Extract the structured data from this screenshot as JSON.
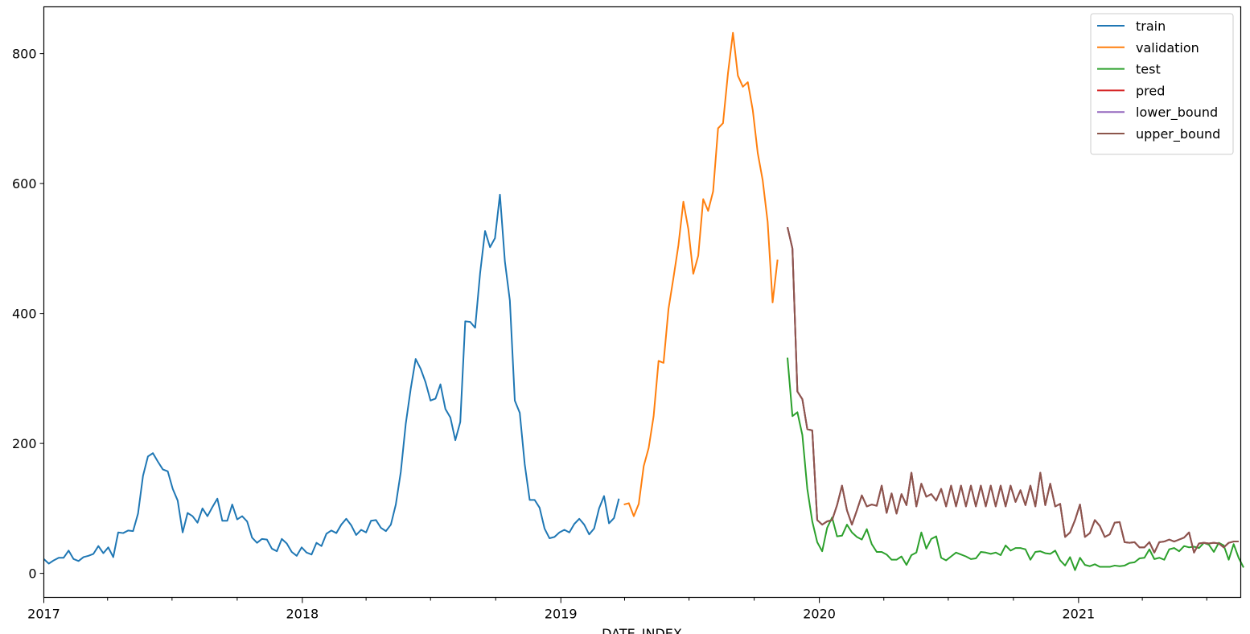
{
  "chart_data": {
    "type": "line",
    "xlabel": "DATE_INDEX",
    "x_ticks": [
      "2017",
      "2018",
      "2019",
      "2020",
      "2021"
    ],
    "y_ticks": [
      0,
      200,
      400,
      600,
      800
    ],
    "xlim": [
      "2017-01-01",
      "2021-08-18"
    ],
    "ylim": [
      -37,
      872
    ],
    "legend_position": "top-right",
    "legend": [
      "train",
      "validation",
      "test",
      "pred",
      "lower_bound",
      "upper_bound"
    ],
    "colors": {
      "train": "#1f77b4",
      "validation": "#ff7f0e",
      "test": "#2ca02c",
      "pred": "#d62728",
      "lower_bound": "#9467bd",
      "upper_bound": "#8c564b"
    },
    "series": [
      {
        "name": "train",
        "start": "2017-01-01",
        "step_days": 7,
        "values": [
          22,
          15,
          20,
          24,
          24,
          35,
          22,
          19,
          25,
          27,
          30,
          42,
          31,
          40,
          25,
          63,
          62,
          66,
          65,
          92,
          150,
          180,
          185,
          172,
          160,
          157,
          130,
          112,
          63,
          93,
          88,
          78,
          100,
          88,
          102,
          115,
          81,
          81,
          106,
          83,
          88,
          80,
          55,
          47,
          53,
          52,
          38,
          34,
          53,
          46,
          33,
          27,
          40,
          32,
          29,
          47,
          42,
          61,
          66,
          62,
          75,
          84,
          74,
          59,
          67,
          63,
          81,
          82,
          70,
          65,
          75,
          106,
          156,
          230,
          284,
          330,
          315,
          294,
          266,
          269,
          291,
          253,
          240,
          205,
          233,
          388,
          387,
          378,
          462,
          527,
          502,
          516,
          583,
          480,
          420,
          266,
          247,
          168,
          113,
          113,
          101,
          69,
          54,
          56,
          63,
          67,
          63,
          76,
          84,
          75,
          60,
          69,
          100,
          119,
          77,
          85,
          115
        ]
      },
      {
        "name": "validation",
        "start": "2019-03-31",
        "step_days": 7,
        "values": [
          106,
          108,
          88,
          107,
          165,
          193,
          242,
          327,
          324,
          407,
          455,
          505,
          572,
          530,
          461,
          489,
          576,
          558,
          588,
          685,
          693,
          770,
          832,
          766,
          749,
          756,
          713,
          647,
          605,
          541,
          417,
          483
        ]
      },
      {
        "name": "test",
        "start": "2019-11-17",
        "step_days": 7,
        "values": [
          332,
          242,
          248,
          213,
          130,
          80,
          48,
          34,
          70,
          86,
          57,
          58,
          75,
          63,
          56,
          52,
          68,
          45,
          33,
          33,
          29,
          21,
          21,
          26,
          13,
          28,
          32,
          63,
          38,
          53,
          57,
          24,
          20,
          26,
          32,
          29,
          26,
          22,
          23,
          33,
          32,
          30,
          32,
          28,
          43,
          35,
          39,
          39,
          37,
          21,
          33,
          34,
          31,
          30,
          35,
          20,
          12,
          25,
          5,
          24,
          13,
          11,
          14,
          10,
          10,
          10,
          12,
          11,
          12,
          16,
          17,
          23,
          24,
          37,
          22,
          24,
          21,
          37,
          39,
          34,
          42,
          40,
          41,
          39,
          47,
          44,
          33,
          47,
          43,
          21,
          45,
          24,
          9
        ]
      },
      {
        "name": "pred",
        "start": "2019-11-17",
        "step_days": 7,
        "values": [
          533,
          500,
          280,
          268,
          222,
          220,
          82,
          75,
          80,
          82,
          105,
          135,
          97,
          75,
          97,
          120,
          103,
          106,
          104,
          135,
          93,
          123,
          92,
          122,
          105,
          155,
          103,
          138,
          118,
          122,
          112,
          130,
          103,
          135,
          103,
          135,
          103,
          135,
          103,
          135,
          103,
          135,
          103,
          135,
          103,
          135,
          110,
          128,
          105,
          135,
          103,
          155,
          105,
          138,
          103,
          107,
          56,
          63,
          82,
          106,
          56,
          62,
          82,
          73,
          56,
          60,
          78,
          79,
          48,
          47,
          48,
          40,
          40,
          48,
          32,
          48,
          49,
          52,
          49,
          52,
          55,
          63,
          32,
          46,
          47,
          46,
          47,
          46,
          40,
          47,
          49,
          49
        ]
      },
      {
        "name": "lower_bound",
        "start": "2019-11-17",
        "step_days": 7,
        "values": [
          533,
          500,
          280,
          268,
          222,
          220,
          82,
          75,
          80,
          82,
          105,
          135,
          97,
          75,
          97,
          120,
          103,
          106,
          104,
          135,
          93,
          123,
          92,
          122,
          105,
          155,
          103,
          138,
          118,
          122,
          112,
          130,
          103,
          135,
          103,
          135,
          103,
          135,
          103,
          135,
          103,
          135,
          103,
          135,
          103,
          135,
          110,
          128,
          105,
          135,
          103,
          155,
          105,
          138,
          103,
          107,
          56,
          63,
          82,
          106,
          56,
          62,
          82,
          73,
          56,
          60,
          78,
          79,
          48,
          47,
          48,
          40,
          40,
          48,
          32,
          48,
          49,
          52,
          49,
          52,
          55,
          63,
          32,
          46,
          47,
          46,
          47,
          46,
          40,
          47,
          49,
          49
        ]
      },
      {
        "name": "upper_bound",
        "start": "2019-11-17",
        "step_days": 7,
        "values": [
          533,
          500,
          280,
          268,
          222,
          220,
          82,
          75,
          80,
          82,
          105,
          135,
          97,
          75,
          97,
          120,
          103,
          106,
          104,
          135,
          93,
          123,
          92,
          122,
          105,
          155,
          103,
          138,
          118,
          122,
          112,
          130,
          103,
          135,
          103,
          135,
          103,
          135,
          103,
          135,
          103,
          135,
          103,
          135,
          103,
          135,
          110,
          128,
          105,
          135,
          103,
          155,
          105,
          138,
          103,
          107,
          56,
          63,
          82,
          106,
          56,
          62,
          82,
          73,
          56,
          60,
          78,
          79,
          48,
          47,
          48,
          40,
          40,
          48,
          32,
          48,
          49,
          52,
          49,
          52,
          55,
          63,
          32,
          46,
          47,
          46,
          47,
          46,
          40,
          47,
          49,
          49
        ]
      }
    ]
  }
}
